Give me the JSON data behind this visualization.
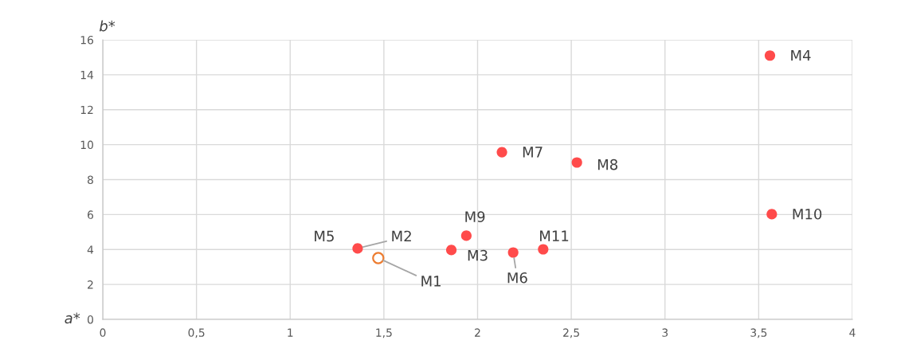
{
  "chart_data": {
    "type": "scatter",
    "xlabel": "a*",
    "ylabel": "b*",
    "series": [
      {
        "color": "#ff4b4b",
        "x": [
          1.36,
          3.56,
          1.86,
          2.19,
          2.13,
          2.53,
          1.94,
          3.57,
          2.35
        ],
        "values": [
          4.06,
          15.1,
          3.97,
          3.83,
          9.57,
          8.98,
          4.79,
          6.02,
          4.01
        ]
      },
      {
        "color": "#ed7d31",
        "x": [
          1.47
        ],
        "values": [
          3.51
        ]
      }
    ],
    "annotations": [
      {
        "text": "M1",
        "x": 1.47,
        "y": 3.51
      },
      {
        "text": "M2",
        "x": 1.36,
        "y": 4.06
      },
      {
        "text": "M3",
        "x": 1.86,
        "y": 3.97
      },
      {
        "text": "M4",
        "x": 3.56,
        "y": 15.1
      },
      {
        "text": "M5",
        "x": 1.36,
        "y": 4.06
      },
      {
        "text": "M6",
        "x": 2.19,
        "y": 3.83
      },
      {
        "text": "M7",
        "x": 2.13,
        "y": 9.57
      },
      {
        "text": "M8",
        "x": 2.53,
        "y": 8.98
      },
      {
        "text": "M9",
        "x": 1.94,
        "y": 4.79
      },
      {
        "text": "M10",
        "x": 3.57,
        "y": 6.02
      },
      {
        "text": "M11",
        "x": 2.35,
        "y": 4.01
      }
    ],
    "xlim": [
      0,
      4
    ],
    "ylim": [
      0,
      16
    ],
    "xticks": [
      0,
      {
        "value": 0.5,
        "label": "0,5"
      },
      1,
      {
        "value": 1.5,
        "label": "1,5"
      },
      2,
      {
        "value": 2.5,
        "label": "2,5"
      },
      3,
      {
        "value": 3.5,
        "label": "3,5"
      },
      4
    ],
    "yticks": [
      0,
      2,
      4,
      6,
      8,
      10,
      12,
      14,
      16
    ],
    "grid": true,
    "marker": "circle"
  }
}
